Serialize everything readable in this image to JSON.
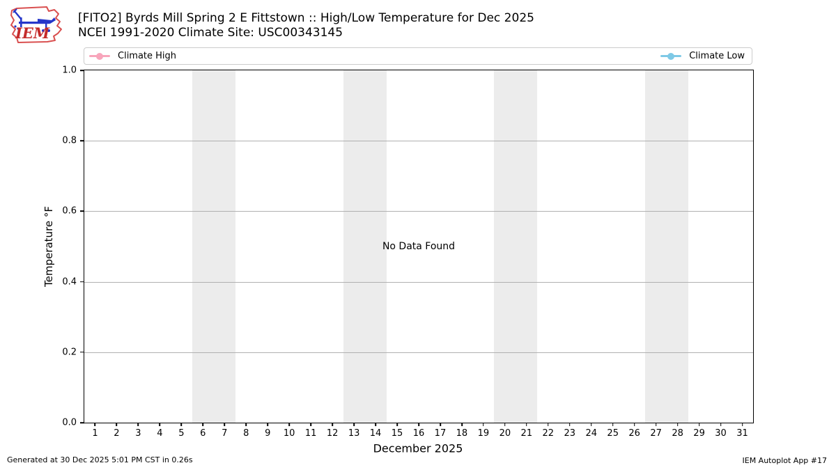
{
  "header": {
    "title": "[FITO2] Byrds Mill Spring 2 E Fittstown :: High/Low Temperature for Dec 2025",
    "subtitle": "NCEI 1991-2020 Climate Site: USC00343145",
    "logo_text": "IEM"
  },
  "legend": {
    "items": [
      {
        "label": "Climate High",
        "color": "#F8A5BB"
      },
      {
        "label": "Climate Low",
        "color": "#7EC9E6"
      }
    ]
  },
  "chart_data": {
    "type": "line",
    "title": "[FITO2] Byrds Mill Spring 2 E Fittstown :: High/Low Temperature for Dec 2025",
    "subtitle": "NCEI 1991-2020 Climate Site: USC00343145",
    "xlabel": "December 2025",
    "ylabel": "Temperature °F",
    "xlim": [
      0.5,
      31.5
    ],
    "ylim": [
      0.0,
      1.0
    ],
    "x_ticks": [
      1,
      2,
      3,
      4,
      5,
      6,
      7,
      8,
      9,
      10,
      11,
      12,
      13,
      14,
      15,
      16,
      17,
      18,
      19,
      20,
      21,
      22,
      23,
      24,
      25,
      26,
      27,
      28,
      29,
      30,
      31
    ],
    "y_ticks": [
      0.0,
      0.2,
      0.4,
      0.6,
      0.8,
      1.0
    ],
    "grid": "horizontal",
    "legend_position": "top, expanded full width",
    "weekend_bands": [
      [
        5.5,
        7.5
      ],
      [
        12.5,
        14.5
      ],
      [
        19.5,
        21.5
      ],
      [
        26.5,
        28.5
      ]
    ],
    "series": [
      {
        "name": "Climate High",
        "color": "#F8A5BB",
        "values": []
      },
      {
        "name": "Climate Low",
        "color": "#7EC9E6",
        "values": []
      }
    ],
    "no_data_text": "No Data Found"
  },
  "footer": {
    "left": "Generated at 30 Dec 2025 5:01 PM CST in 0.26s",
    "right": "IEM Autoplot App #17"
  }
}
